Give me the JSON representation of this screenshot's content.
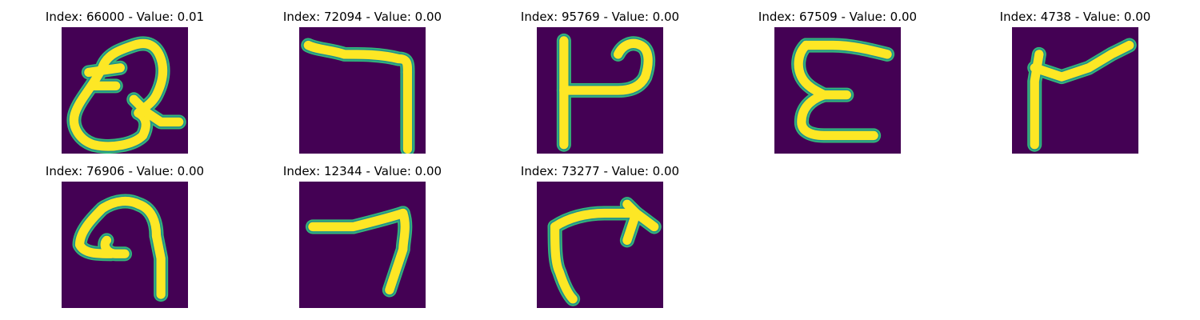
{
  "colors": {
    "background": "#440154",
    "stroke_core": "#fde725",
    "stroke_edge": "#35b779",
    "stroke_mid": "#21918c"
  },
  "chart_data": [
    {
      "type": "heatmap",
      "title": "Index: 66000 - Value: 0.01",
      "index": 66000,
      "value": 0.01,
      "glyph": "loop-with-tail",
      "visible_shape": "loop with inner strokes and a tail"
    },
    {
      "type": "heatmap",
      "title": "Index: 72094 - Value: 0.00",
      "index": 72094,
      "value": 0.0,
      "glyph": "top-bar-right-drop",
      "visible_shape": "horizontal top bar with vertical drop on the right"
    },
    {
      "type": "heatmap",
      "title": "Index: 95769 - Value: 0.00",
      "index": 95769,
      "value": 0.0,
      "glyph": "stem-with-loop",
      "visible_shape": "vertical stem with a loop to the right"
    },
    {
      "type": "heatmap",
      "title": "Index: 67509 - Value: 0.00",
      "index": 67509,
      "value": 0.0,
      "glyph": "e-shape",
      "visible_shape": "E-like shape"
    },
    {
      "type": "heatmap",
      "title": "Index: 4738 - Value: 0.00",
      "index": 4738,
      "value": 0.0,
      "glyph": "stem-diagonal",
      "visible_shape": "vertical stem with diagonal stroke upward to the right"
    },
    {
      "type": "heatmap",
      "title": "Index: 76906 - Value: 0.00",
      "index": 76906,
      "value": 0.0,
      "glyph": "curl-nine",
      "visible_shape": "curl with descending tail"
    },
    {
      "type": "heatmap",
      "title": "Index: 12344 - Value: 0.00",
      "index": 12344,
      "value": 0.0,
      "glyph": "seven-shape",
      "visible_shape": "7-like stroke"
    },
    {
      "type": "heatmap",
      "title": "Index: 73277 - Value: 0.00",
      "index": 73277,
      "value": 0.0,
      "glyph": "arrow-shape",
      "visible_shape": "arrow-like stroke"
    }
  ]
}
